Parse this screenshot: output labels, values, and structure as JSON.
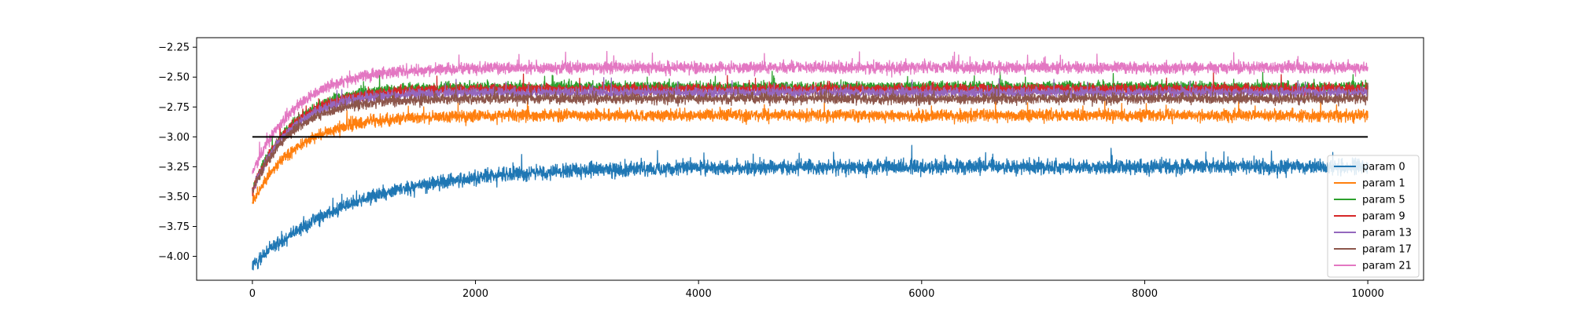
{
  "chart_data": {
    "type": "line",
    "title": "",
    "xlabel": "",
    "ylabel": "",
    "xlim": [
      -500,
      10500
    ],
    "ylim": [
      -4.2,
      -2.17
    ],
    "xticks": [
      0,
      2000,
      4000,
      6000,
      8000,
      10000
    ],
    "xtick_labels": [
      "0",
      "2000",
      "4000",
      "6000",
      "8000",
      "10000"
    ],
    "yticks": [
      -4.0,
      -3.75,
      -3.5,
      -3.25,
      -3.0,
      -2.75,
      -2.5,
      -2.25
    ],
    "ytick_labels": [
      "−4.00",
      "−3.75",
      "−3.50",
      "−3.25",
      "−3.00",
      "−2.75",
      "−2.50",
      "−2.25"
    ],
    "grid": false,
    "legend_position": "lower-right",
    "reference_line": {
      "y": -3.0,
      "x_range": [
        0,
        10000
      ],
      "color": "#000000"
    },
    "series": [
      {
        "name": "param 0",
        "color": "#1f77b4",
        "start": -4.08,
        "plateau": -3.25,
        "tau": 900,
        "noise": 0.05,
        "n_points": 10000
      },
      {
        "name": "param 1",
        "color": "#ff7f0e",
        "start": -3.55,
        "plateau": -2.82,
        "tau": 400,
        "noise": 0.04,
        "n_points": 10000
      },
      {
        "name": "param 5",
        "color": "#2ca02c",
        "start": -3.45,
        "plateau": -2.58,
        "tau": 350,
        "noise": 0.035,
        "n_points": 10000
      },
      {
        "name": "param 9",
        "color": "#d62728",
        "start": -3.45,
        "plateau": -2.6,
        "tau": 350,
        "noise": 0.035,
        "n_points": 10000
      },
      {
        "name": "param 13",
        "color": "#9467bd",
        "start": -3.45,
        "plateau": -2.63,
        "tau": 350,
        "noise": 0.035,
        "n_points": 10000
      },
      {
        "name": "param 17",
        "color": "#8c564b",
        "start": -3.45,
        "plateau": -2.68,
        "tau": 350,
        "noise": 0.035,
        "n_points": 10000
      },
      {
        "name": "param 21",
        "color": "#e377c2",
        "start": -3.3,
        "plateau": -2.42,
        "tau": 400,
        "noise": 0.04,
        "n_points": 10000
      }
    ]
  }
}
